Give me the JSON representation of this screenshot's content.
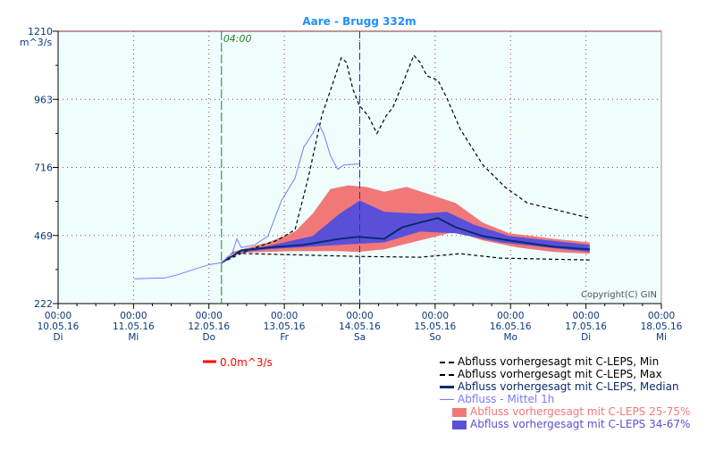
{
  "chart_data": {
    "type": "line",
    "title": "Aare - Brugg 332m",
    "ylabel": "m^3/s",
    "ylim": [
      222,
      1210
    ],
    "yticks": [
      222,
      469,
      716,
      963,
      1210
    ],
    "x_unit": "hours since 10.05.16 00:00",
    "xlim": [
      0,
      192
    ],
    "xticks": [
      {
        "time": "00:00",
        "date": "10.05.16",
        "day": "Di"
      },
      {
        "time": "00:00",
        "date": "11.05.16",
        "day": "Mi"
      },
      {
        "time": "00:00",
        "date": "12.05.16",
        "day": "Do"
      },
      {
        "time": "00:00",
        "date": "13.05.16",
        "day": "Fr"
      },
      {
        "time": "00:00",
        "date": "14.05.16",
        "day": "Sa"
      },
      {
        "time": "00:00",
        "date": "15.05.16",
        "day": "So"
      },
      {
        "time": "00:00",
        "date": "16.05.16",
        "day": "Mo"
      },
      {
        "time": "00:00",
        "date": "17.05.16",
        "day": "Di"
      },
      {
        "time": "00:00",
        "date": "18.05.16",
        "day": "Mi"
      }
    ],
    "forecast_start_hour": 52,
    "forecast_start_label": "04:00",
    "now_hour": 96,
    "grid": true,
    "copyright": "Copyright(C) GIN",
    "threshold_label": "0.0m^3/s",
    "colors": {
      "min": "#000000",
      "max": "#000000",
      "median": "#0a2a6e",
      "observed": "#7a7aff",
      "band2575": "#f07878",
      "band3467": "#5a50d8",
      "grid": "#a04040",
      "bg": "#effdfd",
      "axis": "#0a3a7a",
      "title": "#1e8fff",
      "forecast": "#2a7a2a",
      "now": "#2030d0",
      "threshold": "#ff0000"
    },
    "bands": [
      {
        "name": "Abfluss vorhergesagt mit C-LEPS 25-75%",
        "color": "#f07878",
        "upper": [
          [
            52,
            370
          ],
          [
            55.5,
            410
          ],
          [
            66.8,
            444
          ],
          [
            75.4,
            483
          ],
          [
            81,
            548
          ],
          [
            86.7,
            638
          ],
          [
            92.4,
            651
          ],
          [
            98.1,
            645
          ],
          [
            103.8,
            628
          ],
          [
            110.9,
            645
          ],
          [
            118,
            619
          ],
          [
            126.5,
            587
          ],
          [
            135.1,
            516
          ],
          [
            143.6,
            477
          ],
          [
            157.8,
            457
          ],
          [
            169.2,
            444
          ]
        ],
        "lower": [
          [
            52,
            370
          ],
          [
            55.5,
            406
          ],
          [
            75.4,
            412
          ],
          [
            89.6,
            412
          ],
          [
            95.3,
            409
          ],
          [
            103.8,
            419
          ],
          [
            115.2,
            451
          ],
          [
            126.5,
            483
          ],
          [
            135.1,
            451
          ],
          [
            146.4,
            425
          ],
          [
            157.8,
            409
          ],
          [
            169.2,
            403
          ]
        ]
      },
      {
        "name": "Abfluss vorhergesagt mit C-LEPS 34-67%",
        "color": "#5a50d8",
        "upper": [
          [
            52,
            370
          ],
          [
            58.3,
            412
          ],
          [
            66.8,
            431
          ],
          [
            81,
            467
          ],
          [
            89.6,
            548
          ],
          [
            96,
            596
          ],
          [
            103.8,
            555
          ],
          [
            115.2,
            548
          ],
          [
            123.7,
            555
          ],
          [
            132.2,
            509
          ],
          [
            143.6,
            467
          ],
          [
            169.2,
            435
          ]
        ],
        "lower": [
          [
            52,
            370
          ],
          [
            58.3,
            408
          ],
          [
            66.8,
            419
          ],
          [
            89.6,
            435
          ],
          [
            103.8,
            444
          ],
          [
            115.2,
            483
          ],
          [
            126.5,
            477
          ],
          [
            140.8,
            444
          ],
          [
            169.2,
            409
          ]
        ]
      }
    ],
    "series": [
      {
        "name": "Abfluss vorhergesagt mit C-LEPS, Min",
        "style": "dash",
        "color": "#000000",
        "points": [
          [
            52,
            370
          ],
          [
            55.5,
            406
          ],
          [
            61.1,
            403
          ],
          [
            95.3,
            393
          ],
          [
            115.2,
            390
          ],
          [
            128,
            403
          ],
          [
            140.8,
            387
          ],
          [
            169.2,
            380
          ]
        ]
      },
      {
        "name": "Abfluss vorhergesagt mit C-LEPS, Max",
        "style": "dash",
        "color": "#000000",
        "points": [
          [
            52,
            370
          ],
          [
            61.1,
            419
          ],
          [
            69.7,
            451
          ],
          [
            75.4,
            490
          ],
          [
            79.6,
            677
          ],
          [
            83.9,
            903
          ],
          [
            87.3,
            1016
          ],
          [
            90.1,
            1113
          ],
          [
            91.8,
            1097
          ],
          [
            93.8,
            1000
          ],
          [
            95.8,
            942
          ],
          [
            98.7,
            903
          ],
          [
            101.5,
            839
          ],
          [
            104.4,
            903
          ],
          [
            106.6,
            935
          ],
          [
            109.5,
            1016
          ],
          [
            113.2,
            1123
          ],
          [
            115.2,
            1097
          ],
          [
            117.4,
            1048
          ],
          [
            120.9,
            1032
          ],
          [
            123.7,
            968
          ],
          [
            128,
            855
          ],
          [
            135.1,
            726
          ],
          [
            142.2,
            645
          ],
          [
            149.3,
            587
          ],
          [
            157.8,
            564
          ],
          [
            169.2,
            532
          ]
        ]
      },
      {
        "name": "Abfluss vorhergesagt mit C-LEPS, Median",
        "style": "thick",
        "color": "#0a2a6e",
        "points": [
          [
            52,
            370
          ],
          [
            58.3,
            415
          ],
          [
            66.8,
            425
          ],
          [
            78.2,
            435
          ],
          [
            89.6,
            457
          ],
          [
            95.3,
            464
          ],
          [
            103.8,
            457
          ],
          [
            109.5,
            499
          ],
          [
            115.2,
            516
          ],
          [
            120.9,
            532
          ],
          [
            126.5,
            499
          ],
          [
            135.1,
            467
          ],
          [
            143.6,
            451
          ],
          [
            157.8,
            428
          ],
          [
            169.2,
            419
          ]
        ]
      },
      {
        "name": "Abfluss - Mittel 1h",
        "style": "thin",
        "color": "#7a7aff",
        "points": [
          [
            24.2,
            312
          ],
          [
            34,
            315
          ],
          [
            38.4,
            328
          ],
          [
            42.7,
            344
          ],
          [
            48.3,
            364
          ],
          [
            52,
            370
          ],
          [
            55.5,
            406
          ],
          [
            56.9,
            457
          ],
          [
            58.3,
            425
          ],
          [
            62.6,
            435
          ],
          [
            66.8,
            467
          ],
          [
            71.1,
            596
          ],
          [
            75.4,
            677
          ],
          [
            78.2,
            790
          ],
          [
            81,
            839
          ],
          [
            82.7,
            877
          ],
          [
            84.5,
            839
          ],
          [
            86.7,
            758
          ],
          [
            89,
            709
          ],
          [
            91,
            725
          ],
          [
            95.8,
            729
          ]
        ]
      }
    ]
  }
}
